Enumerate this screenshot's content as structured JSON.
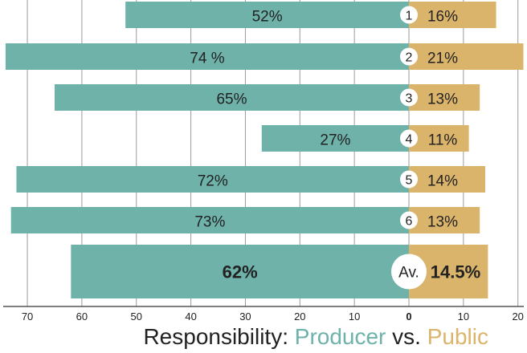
{
  "colors": {
    "producer": "#6eb2aa",
    "public": "#dbb46b",
    "grid": "#9a9a9a",
    "text": "#222222"
  },
  "chart_data": {
    "type": "bar",
    "orientation": "horizontal-diverging",
    "categories": [
      "1",
      "2",
      "3",
      "4",
      "5",
      "6",
      "Av."
    ],
    "series": [
      {
        "name": "Producer",
        "values": [
          52,
          74,
          65,
          27,
          72,
          73,
          62
        ],
        "labels": [
          "52%",
          "74 %",
          "65%",
          "27%",
          "72%",
          "73%",
          "62%"
        ],
        "color": "#6eb2aa"
      },
      {
        "name": "Public",
        "values": [
          16,
          21,
          13,
          11,
          14,
          13,
          14.5
        ],
        "labels": [
          "16%",
          "21%",
          "13%",
          "11%",
          "14%",
          "13%",
          "14.5%"
        ],
        "color": "#dbb46b"
      }
    ],
    "xticks": [
      "70",
      "60",
      "50",
      "40",
      "30",
      "20",
      "10",
      "0",
      "10",
      "20"
    ],
    "xlim": [
      -70,
      20
    ],
    "grid": true,
    "title": {
      "prefix": "Responsibility: ",
      "producer": "Producer",
      "middle": " vs. ",
      "public": "Public"
    }
  }
}
